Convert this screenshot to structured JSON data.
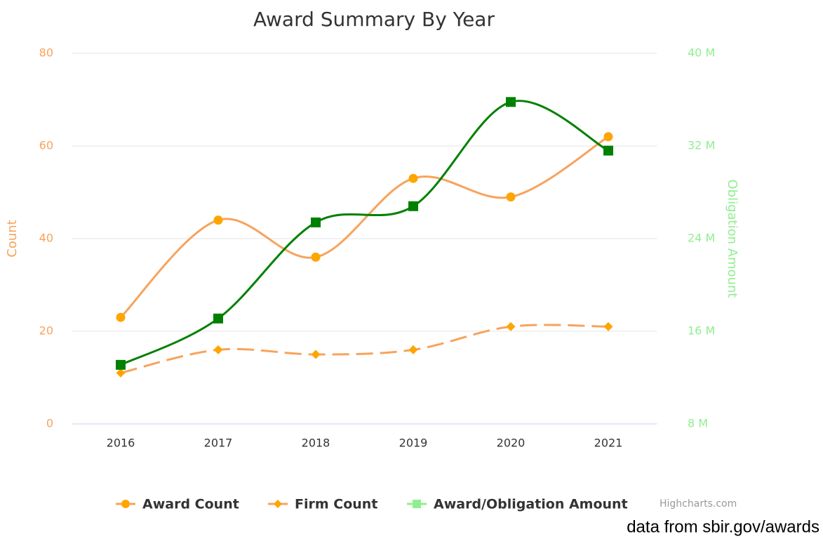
{
  "chart_data": {
    "type": "line",
    "title": "Award Summary By Year",
    "categories": [
      "2016",
      "2017",
      "2018",
      "2019",
      "2020",
      "2021"
    ],
    "y_label": "Count",
    "y2_label": "Obligation Amount",
    "ylim": [
      0,
      80
    ],
    "yticks": [
      0,
      20,
      40,
      60,
      80
    ],
    "y2lim": [
      8000000,
      40000000
    ],
    "y2ticks": [
      {
        "value": 8000000,
        "label": "8 M"
      },
      {
        "value": 16000000,
        "label": "16 M"
      },
      {
        "value": 24000000,
        "label": "24 M"
      },
      {
        "value": 32000000,
        "label": "32 M"
      },
      {
        "value": 40000000,
        "label": "40 M"
      }
    ],
    "grid": true,
    "y_axis_color": "#f7a35c",
    "y2_axis_color": "#90ee90",
    "series": [
      {
        "name": "Award Count",
        "color": "#f7a35c",
        "marker_color": "#ffa500",
        "marker": "circle",
        "dash": false,
        "values": [
          23,
          44,
          36,
          53,
          49,
          62
        ]
      },
      {
        "name": "Firm Count",
        "color": "#f7a35c",
        "marker_color": "#ffa500",
        "marker": "diamond",
        "dash": true,
        "values": [
          11,
          16,
          15,
          16,
          21,
          21
        ]
      },
      {
        "name": "Award/Obligation Amount",
        "color": "#008000",
        "marker_color": "#008000",
        "legend_color": "#90ee90",
        "marker": "square",
        "dash": false,
        "axis": "y2",
        "values": [
          13100000,
          17100000,
          25400000,
          26800000,
          35800000,
          31600000
        ]
      }
    ],
    "credit": "Highcharts.com",
    "source_note": "data from sbir.gov/awards"
  }
}
